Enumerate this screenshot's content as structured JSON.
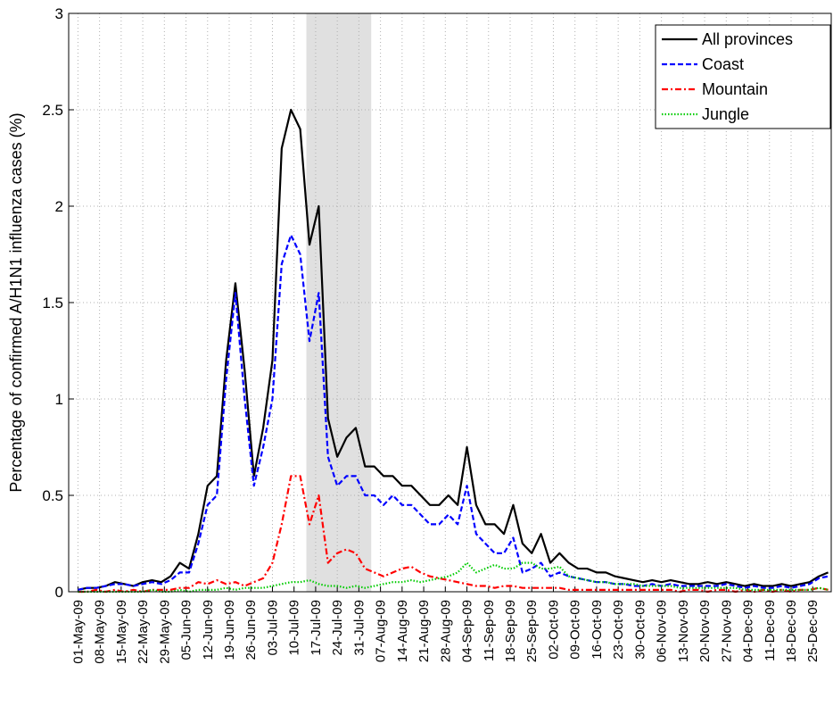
{
  "chart_data": {
    "type": "line",
    "y_label": "Percentage of confirmed A/H1N1 influenza cases (%)",
    "x": [
      "01-May-09",
      "04-May-09",
      "07-May-09",
      "10-May-09",
      "13-May-09",
      "16-May-09",
      "19-May-09",
      "22-May-09",
      "25-May-09",
      "28-May-09",
      "31-May-09",
      "03-Jun-09",
      "06-Jun-09",
      "09-Jun-09",
      "12-Jun-09",
      "15-Jun-09",
      "18-Jun-09",
      "21-Jun-09",
      "24-Jun-09",
      "27-Jun-09",
      "30-Jun-09",
      "03-Jul-09",
      "06-Jul-09",
      "09-Jul-09",
      "12-Jul-09",
      "15-Jul-09",
      "18-Jul-09",
      "21-Jul-09",
      "24-Jul-09",
      "27-Jul-09",
      "30-Jul-09",
      "02-Aug-09",
      "05-Aug-09",
      "08-Aug-09",
      "11-Aug-09",
      "14-Aug-09",
      "17-Aug-09",
      "20-Aug-09",
      "23-Aug-09",
      "26-Aug-09",
      "29-Aug-09",
      "01-Sep-09",
      "04-Sep-09",
      "07-Sep-09",
      "10-Sep-09",
      "13-Sep-09",
      "16-Sep-09",
      "19-Sep-09",
      "22-Sep-09",
      "25-Sep-09",
      "28-Sep-09",
      "01-Oct-09",
      "04-Oct-09",
      "07-Oct-09",
      "10-Oct-09",
      "13-Oct-09",
      "16-Oct-09",
      "19-Oct-09",
      "22-Oct-09",
      "25-Oct-09",
      "28-Oct-09",
      "31-Oct-09",
      "03-Nov-09",
      "06-Nov-09",
      "09-Nov-09",
      "12-Nov-09",
      "15-Nov-09",
      "18-Nov-09",
      "21-Nov-09",
      "24-Nov-09",
      "27-Nov-09",
      "30-Nov-09",
      "03-Dec-09",
      "06-Dec-09",
      "09-Dec-09",
      "12-Dec-09",
      "15-Dec-09",
      "18-Dec-09",
      "21-Dec-09",
      "24-Dec-09",
      "27-Dec-09",
      "30-Dec-09"
    ],
    "series": [
      {
        "name": "All provinces",
        "color": "#000000",
        "linestyle": "-",
        "values": [
          0.01,
          0.02,
          0.02,
          0.03,
          0.05,
          0.04,
          0.03,
          0.05,
          0.06,
          0.05,
          0.08,
          0.15,
          0.12,
          0.3,
          0.55,
          0.6,
          1.2,
          1.6,
          1.15,
          0.6,
          0.85,
          1.2,
          2.3,
          2.5,
          2.4,
          1.8,
          2.0,
          0.9,
          0.7,
          0.8,
          0.85,
          0.65,
          0.65,
          0.6,
          0.6,
          0.55,
          0.55,
          0.5,
          0.45,
          0.45,
          0.5,
          0.45,
          0.75,
          0.45,
          0.35,
          0.35,
          0.3,
          0.45,
          0.25,
          0.2,
          0.3,
          0.15,
          0.2,
          0.15,
          0.12,
          0.12,
          0.1,
          0.1,
          0.08,
          0.07,
          0.06,
          0.05,
          0.06,
          0.05,
          0.06,
          0.05,
          0.04,
          0.04,
          0.05,
          0.04,
          0.05,
          0.04,
          0.03,
          0.04,
          0.03,
          0.03,
          0.04,
          0.03,
          0.04,
          0.05,
          0.08,
          0.1
        ]
      },
      {
        "name": "Coast",
        "color": "#0000ff",
        "linestyle": "--",
        "values": [
          0.01,
          0.02,
          0.02,
          0.03,
          0.04,
          0.04,
          0.03,
          0.04,
          0.05,
          0.04,
          0.06,
          0.1,
          0.1,
          0.25,
          0.45,
          0.5,
          1.1,
          1.55,
          1.0,
          0.55,
          0.75,
          1.0,
          1.7,
          1.85,
          1.75,
          1.3,
          1.55,
          0.7,
          0.55,
          0.6,
          0.6,
          0.5,
          0.5,
          0.45,
          0.5,
          0.45,
          0.45,
          0.4,
          0.35,
          0.35,
          0.4,
          0.35,
          0.55,
          0.3,
          0.25,
          0.2,
          0.2,
          0.28,
          0.1,
          0.12,
          0.15,
          0.08,
          0.1,
          0.08,
          0.07,
          0.06,
          0.05,
          0.05,
          0.04,
          0.04,
          0.03,
          0.03,
          0.04,
          0.03,
          0.04,
          0.03,
          0.03,
          0.03,
          0.03,
          0.03,
          0.04,
          0.03,
          0.02,
          0.03,
          0.02,
          0.02,
          0.03,
          0.02,
          0.03,
          0.04,
          0.07,
          0.08
        ]
      },
      {
        "name": "Mountain",
        "color": "#ff0000",
        "linestyle": "-.",
        "values": [
          0,
          0,
          0.01,
          0,
          0.01,
          0,
          0.01,
          0,
          0.01,
          0.01,
          0.01,
          0.02,
          0.02,
          0.05,
          0.04,
          0.06,
          0.04,
          0.05,
          0.03,
          0.05,
          0.07,
          0.15,
          0.35,
          0.6,
          0.6,
          0.35,
          0.5,
          0.15,
          0.2,
          0.22,
          0.2,
          0.12,
          0.1,
          0.08,
          0.1,
          0.12,
          0.13,
          0.1,
          0.08,
          0.07,
          0.06,
          0.05,
          0.04,
          0.03,
          0.03,
          0.02,
          0.03,
          0.03,
          0.02,
          0.02,
          0.02,
          0.02,
          0.02,
          0.01,
          0.01,
          0.01,
          0.01,
          0.01,
          0.01,
          0.01,
          0.01,
          0.01,
          0.01,
          0.01,
          0.01,
          0,
          0.01,
          0.01,
          0,
          0.01,
          0.01,
          0,
          0.01,
          0,
          0.01,
          0,
          0.01,
          0,
          0.01,
          0.01,
          0.02,
          0.01
        ]
      },
      {
        "name": "Jungle",
        "color": "#00cc00",
        "linestyle": ":",
        "values": [
          0,
          0,
          0,
          0,
          0,
          0,
          0,
          0,
          0.01,
          0,
          0,
          0.01,
          0,
          0.01,
          0.01,
          0.01,
          0.02,
          0.01,
          0.02,
          0.02,
          0.02,
          0.03,
          0.04,
          0.05,
          0.05,
          0.06,
          0.04,
          0.03,
          0.03,
          0.02,
          0.03,
          0.02,
          0.03,
          0.04,
          0.05,
          0.05,
          0.06,
          0.05,
          0.06,
          0.07,
          0.08,
          0.1,
          0.15,
          0.1,
          0.12,
          0.14,
          0.12,
          0.12,
          0.15,
          0.15,
          0.12,
          0.12,
          0.13,
          0.08,
          0.07,
          0.06,
          0.05,
          0.05,
          0.04,
          0.04,
          0.04,
          0.03,
          0.03,
          0.03,
          0.03,
          0.02,
          0.02,
          0.02,
          0.02,
          0.02,
          0.02,
          0.02,
          0.01,
          0.01,
          0.01,
          0.01,
          0.01,
          0.01,
          0.01,
          0.01,
          0.02,
          0.01
        ]
      }
    ],
    "xlim": [
      "28-Apr-09",
      "31-Dec-09"
    ],
    "xticks": [
      "01-May-09",
      "08-May-09",
      "15-May-09",
      "22-May-09",
      "29-May-09",
      "05-Jun-09",
      "12-Jun-09",
      "19-Jun-09",
      "26-Jun-09",
      "03-Jul-09",
      "10-Jul-09",
      "17-Jul-09",
      "24-Jul-09",
      "31-Jul-09",
      "07-Aug-09",
      "14-Aug-09",
      "21-Aug-09",
      "28-Aug-09",
      "04-Sep-09",
      "11-Sep-09",
      "18-Sep-09",
      "25-Sep-09",
      "02-Oct-09",
      "09-Oct-09",
      "16-Oct-09",
      "23-Oct-09",
      "30-Oct-09",
      "06-Nov-09",
      "13-Nov-09",
      "20-Nov-09",
      "27-Nov-09",
      "04-Dec-09",
      "11-Dec-09",
      "18-Dec-09",
      "25-Dec-09"
    ],
    "ylim": [
      0,
      3
    ],
    "yticks": [
      0,
      0.5,
      1,
      1.5,
      2,
      2.5,
      3
    ],
    "shaded_span": [
      "14-Jul-09",
      "04-Aug-09"
    ],
    "shade_color": "#e0e0e0",
    "grid": true,
    "legend_position": "upper-right"
  }
}
